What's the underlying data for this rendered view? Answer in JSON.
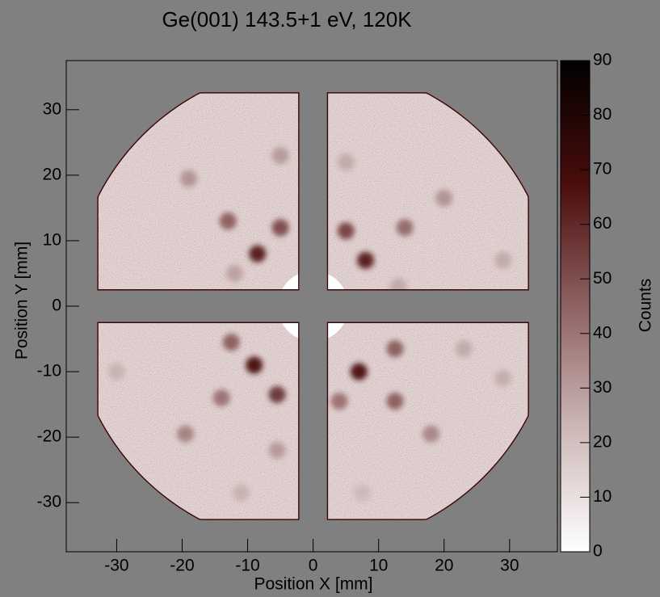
{
  "chart_data": {
    "type": "heatmap",
    "title": "Ge(001) 143.5+1 eV, 120K",
    "xlabel": "Position X [mm]",
    "ylabel": "Position Y [mm]",
    "zlabel": "Counts",
    "xlim": [
      -37.7,
      37.3
    ],
    "ylim": [
      -37.5,
      37.5
    ],
    "zlim": [
      0,
      90
    ],
    "xticks": [
      -30,
      -20,
      -10,
      0,
      10,
      20,
      30
    ],
    "yticks": [
      -30,
      -20,
      -10,
      0,
      10,
      20,
      30
    ],
    "zticks": [
      0,
      10,
      20,
      30,
      40,
      50,
      60,
      70,
      80,
      90
    ],
    "colors": [
      "#ffffff",
      "#cdb8b8",
      "#8f6262",
      "#4a0c0c",
      "#000000"
    ],
    "background": 12,
    "x": [
      -19,
      -13,
      -8.5,
      -5,
      -12,
      -5,
      5,
      8,
      14,
      20,
      5,
      29,
      13,
      -12.5,
      -9,
      -14,
      -5.5,
      -19.5,
      -30,
      -11,
      -5.5,
      7,
      12.5,
      12.5,
      4,
      18,
      23,
      29,
      7.5
    ],
    "y": [
      19.5,
      13,
      8,
      12,
      5,
      23,
      11.5,
      7,
      12,
      16.5,
      22,
      7,
      3,
      -5.5,
      -9,
      -14,
      -13.5,
      -19.5,
      -10,
      -28.5,
      -22,
      -10,
      -6.5,
      -14.5,
      -14.5,
      -19.5,
      -6.5,
      -11,
      -28.5
    ],
    "values": [
      32,
      45,
      62,
      50,
      28,
      30,
      52,
      62,
      42,
      32,
      26,
      26,
      26,
      45,
      66,
      40,
      55,
      36,
      24,
      24,
      30,
      66,
      45,
      45,
      40,
      35,
      26,
      25,
      22
    ]
  }
}
